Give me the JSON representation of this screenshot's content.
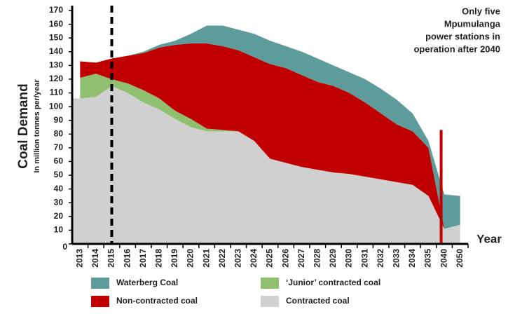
{
  "chart_data": {
    "type": "stacked_area",
    "y_label": "Coal Demand",
    "y_sublabel": "In million tonnes per/year",
    "x_label": "Year",
    "annotation": [
      "Only five",
      "Mpumulanga",
      "power stations in",
      "operation after 2040"
    ],
    "categories": [
      "2013",
      "2014",
      "2015",
      "2016",
      "2017",
      "2018",
      "2019",
      "2020",
      "2021",
      "2022",
      "2023",
      "2024",
      "2025",
      "2026",
      "2027",
      "2028",
      "2029",
      "2030",
      "2031",
      "2032",
      "2033",
      "2034",
      "2035",
      "2040",
      "2050"
    ],
    "series": [
      {
        "name": "Contracted coal",
        "color": "#d0d0d0",
        "values": [
          106,
          107,
          115,
          110,
          103,
          98,
          91,
          85,
          82,
          82,
          82,
          75,
          62,
          59,
          56,
          54,
          52,
          51,
          49,
          47,
          45,
          43,
          35,
          11,
          14
        ]
      },
      {
        "name": "‘Junior’ contracted coal",
        "color": "#8fbf6f",
        "values": [
          15,
          17,
          5,
          7,
          9,
          8,
          6,
          6,
          2,
          1,
          0,
          0,
          0,
          0,
          0,
          0,
          0,
          0,
          0,
          0,
          0,
          0,
          0,
          0,
          0
        ]
      },
      {
        "name": "Non-contracted coal",
        "color": "#c00000",
        "values": [
          12,
          8,
          15,
          20,
          27,
          37,
          48,
          55,
          62,
          61,
          59,
          61,
          69,
          69,
          67,
          64,
          63,
          59,
          54,
          48,
          42,
          39,
          35,
          0,
          0
        ]
      },
      {
        "name": "Waterberg Coal",
        "color": "#5e9c9c",
        "values": [
          0,
          0,
          0,
          0,
          1,
          2,
          3,
          7,
          13,
          15,
          15,
          17,
          17,
          16,
          17,
          17,
          15,
          15,
          17,
          18,
          18,
          13,
          5,
          25,
          21
        ]
      }
    ],
    "ylim": [
      0,
      170
    ],
    "yticks": [
      0,
      10,
      20,
      30,
      40,
      50,
      60,
      70,
      80,
      90,
      100,
      110,
      120,
      130,
      140,
      150,
      160,
      170
    ]
  }
}
